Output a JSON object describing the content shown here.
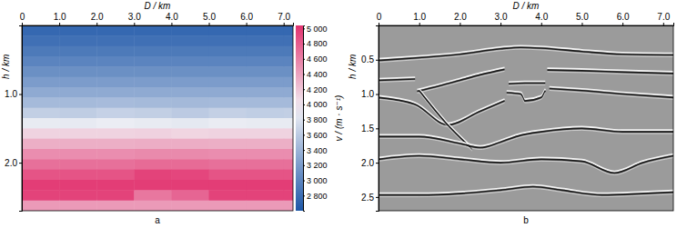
{
  "chart_data": [
    {
      "type": "heatmap",
      "caption": "a",
      "xlabel": "D / km",
      "ylabel": "h / km",
      "xlim": [
        0,
        7.25
      ],
      "ylim": [
        0,
        2.7
      ],
      "xticks": [
        0,
        {
          "value": 1,
          "label": "1.0"
        },
        {
          "value": 2,
          "label": "2.0"
        },
        {
          "value": 3,
          "label": "3.0"
        },
        {
          "value": 4,
          "label": "4.0"
        },
        {
          "value": 5,
          "label": "5.0"
        },
        {
          "value": 6,
          "label": "6.0"
        },
        {
          "value": 7,
          "label": "7.0"
        }
      ],
      "yticks": [
        {
          "value": 1,
          "label": "1.0"
        },
        {
          "value": 2,
          "label": "2.0"
        }
      ],
      "x_edges": [
        0,
        1,
        2,
        3,
        4,
        5,
        6,
        7,
        7.25
      ],
      "h_edges": [
        0,
        0.15,
        0.3,
        0.45,
        0.6,
        0.75,
        0.9,
        1.05,
        1.2,
        1.35,
        1.5,
        1.65,
        1.8,
        1.95,
        2.1,
        2.25,
        2.4,
        2.55,
        2.7
      ],
      "cells": [
        [
          2750,
          2750,
          2750,
          2750,
          2750,
          2750,
          2750,
          2750
        ],
        [
          2820,
          2820,
          2820,
          2820,
          2820,
          2820,
          2820,
          2820
        ],
        [
          2900,
          2900,
          2900,
          2900,
          2900,
          2900,
          2900,
          2900
        ],
        [
          2990,
          2990,
          2990,
          2990,
          2990,
          2990,
          2990,
          2990
        ],
        [
          3090,
          3090,
          3090,
          3090,
          3090,
          3090,
          3090,
          3090
        ],
        [
          3200,
          3200,
          3200,
          3200,
          3200,
          3200,
          3200,
          3200
        ],
        [
          3320,
          3320,
          3320,
          3320,
          3320,
          3320,
          3320,
          3320
        ],
        [
          3460,
          3460,
          3470,
          3460,
          3450,
          3460,
          3460,
          3460
        ],
        [
          3640,
          3620,
          3660,
          3640,
          3600,
          3650,
          3630,
          3640
        ],
        [
          3880,
          3870,
          3900,
          3880,
          3860,
          3890,
          3880,
          3880
        ],
        [
          4120,
          4120,
          4120,
          4130,
          4110,
          4120,
          4120,
          4120
        ],
        [
          4330,
          4330,
          4330,
          4340,
          4340,
          4330,
          4330,
          4330
        ],
        [
          4520,
          4520,
          4520,
          4540,
          4540,
          4520,
          4520,
          4520
        ],
        [
          4690,
          4690,
          4690,
          4720,
          4720,
          4690,
          4690,
          4690
        ],
        [
          4850,
          4850,
          4850,
          4950,
          4930,
          4850,
          4850,
          4850
        ],
        [
          4980,
          4980,
          4980,
          4980,
          4980,
          4980,
          4980,
          4980
        ],
        [
          4950,
          4950,
          4950,
          4650,
          4750,
          4950,
          4950,
          4950
        ],
        [
          4450,
          4450,
          4450,
          4450,
          4450,
          4450,
          4450,
          4450
        ]
      ],
      "colorbar": {
        "label": "v / (m · s⁻¹)",
        "range": [
          2600,
          5040
        ],
        "ticks": [
          {
            "value": 2800,
            "label": "2 800"
          },
          {
            "value": 3000,
            "label": "3 000"
          },
          {
            "value": 3200,
            "label": "3 200"
          },
          {
            "value": 3400,
            "label": "3 400"
          },
          {
            "value": 3600,
            "label": "3 600"
          },
          {
            "value": 3800,
            "label": "3 800"
          },
          {
            "value": 4000,
            "label": "4 000"
          },
          {
            "value": 4200,
            "label": "4 200"
          },
          {
            "value": 4400,
            "label": "4 400"
          },
          {
            "value": 4600,
            "label": "4 600"
          },
          {
            "value": 4800,
            "label": "4 800"
          },
          {
            "value": 5000,
            "label": "5 000"
          }
        ]
      }
    },
    {
      "type": "line",
      "caption": "b",
      "xlabel": "D / km",
      "ylabel": "h / km",
      "xlim": [
        0,
        7.25
      ],
      "ylim": [
        0,
        2.7
      ],
      "xticks": [
        0,
        {
          "value": 1,
          "label": "1.0"
        },
        {
          "value": 2,
          "label": "2.0"
        },
        {
          "value": 3,
          "label": "3.0"
        },
        {
          "value": 4,
          "label": "4.0"
        },
        {
          "value": 5,
          "label": "5.0"
        },
        {
          "value": 6,
          "label": "6.0"
        },
        {
          "value": 7,
          "label": "7.0"
        }
      ],
      "yticks": [
        0.5,
        {
          "value": 1,
          "label": "1.0"
        },
        1.5,
        {
          "value": 2,
          "label": "2.0"
        },
        2.5
      ],
      "series": [
        {
          "x": [
            0,
            1,
            2,
            3,
            3.5,
            4,
            5,
            6,
            7.25
          ],
          "values": [
            0.51,
            0.47,
            0.42,
            0.34,
            0.32,
            0.33,
            0.38,
            0.42,
            0.43
          ]
        },
        {
          "x": [
            0,
            0.9
          ],
          "values": [
            0.8,
            0.78
          ]
        },
        {
          "x": [
            0.95,
            1.5,
            2,
            2.5,
            3.1
          ],
          "values": [
            0.96,
            0.88,
            0.8,
            0.72,
            0.64
          ]
        },
        {
          "x": [
            3.2,
            3.6,
            4.1
          ],
          "values": [
            0.85,
            0.84,
            0.84
          ]
        },
        {
          "x": [
            4.15,
            5,
            6,
            7.25
          ],
          "values": [
            0.65,
            0.66,
            0.68,
            0.7
          ]
        },
        {
          "x": [
            0,
            0.9,
            1.7,
            2.5,
            3.1
          ],
          "values": [
            1.05,
            1.15,
            1.45,
            1.25,
            1.1
          ]
        },
        {
          "x": [
            1,
            1.7,
            2.3
          ],
          "values": [
            0.95,
            1.45,
            1.8
          ]
        },
        {
          "x": [
            3.15,
            3.5,
            3.6,
            4,
            4.1
          ],
          "values": [
            0.98,
            1,
            1.1,
            1.05,
            0.95
          ]
        },
        {
          "x": [
            4.2,
            5,
            6,
            7.25
          ],
          "values": [
            0.92,
            0.95,
            1,
            1.05
          ]
        },
        {
          "x": [
            0,
            1,
            2,
            2.5,
            3,
            3.5,
            4,
            5,
            6,
            7.25
          ],
          "values": [
            1.62,
            1.62,
            1.72,
            1.78,
            1.7,
            1.6,
            1.55,
            1.5,
            1.55,
            1.55
          ]
        },
        {
          "x": [
            0,
            1,
            2,
            3,
            4,
            5,
            5.8,
            6.5,
            7.25
          ],
          "values": [
            1.95,
            1.9,
            1.95,
            2,
            1.95,
            1.98,
            2.15,
            2,
            1.9
          ]
        },
        {
          "x": [
            0,
            1,
            2,
            3,
            3.8,
            4.5,
            5.5,
            6.5,
            7.25
          ],
          "values": [
            2.47,
            2.47,
            2.45,
            2.4,
            2.35,
            2.4,
            2.47,
            2.45,
            2.43
          ]
        }
      ]
    }
  ]
}
